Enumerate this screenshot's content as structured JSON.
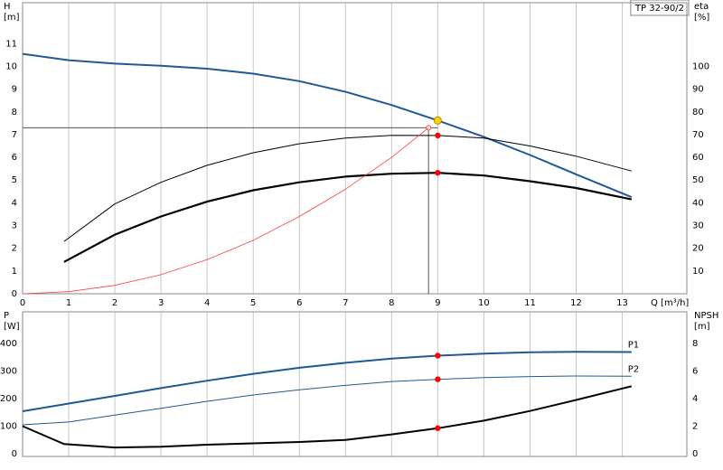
{
  "chart_data": [
    {
      "type": "line",
      "title": "TP 32-90/2",
      "ylabel": [
        "H",
        "[m]"
      ],
      "y2label": [
        "eta",
        "[%]"
      ],
      "xlabel": "Q [m³/h]",
      "xlim": [
        0,
        14.4
      ],
      "xticks": [
        0,
        1,
        2,
        3,
        4,
        5,
        6,
        7,
        8,
        9,
        10,
        11,
        12,
        13
      ],
      "ylim": [
        0,
        12.8
      ],
      "yticks": [
        0,
        1,
        2,
        3,
        4,
        5,
        6,
        7,
        8,
        9,
        10,
        11
      ],
      "y2lim": [
        0,
        128
      ],
      "y2ticks": [
        10,
        20,
        30,
        40,
        50,
        60,
        70,
        80,
        90,
        100
      ],
      "grid": "x",
      "guide": {
        "x": 8.8,
        "y": 7.3,
        "color": "#555555"
      },
      "series": [
        {
          "color": "#1f5a96",
          "linewidth": 2,
          "x": [
            0,
            1,
            2,
            3,
            4,
            5,
            6,
            7,
            8,
            9,
            10,
            11,
            12,
            13.2
          ],
          "values": [
            10.55,
            10.27,
            10.12,
            10.03,
            9.9,
            9.68,
            9.35,
            8.88,
            8.3,
            7.62,
            6.9,
            6.1,
            5.25,
            4.25
          ]
        },
        {
          "color": "#000000",
          "linewidth": 1,
          "axis": "y2",
          "x": [
            0.9,
            2,
            3,
            4,
            5,
            6,
            7,
            8,
            9,
            10,
            11,
            12,
            13.2
          ],
          "values": [
            23,
            39.5,
            49,
            56.5,
            62,
            66,
            68.5,
            69.7,
            69.6,
            68.5,
            65,
            60.5,
            54
          ]
        },
        {
          "color": "#000000",
          "linewidth": 2.2,
          "axis": "y2",
          "x": [
            0.9,
            2,
            3,
            4,
            5,
            6,
            7,
            8,
            9,
            10,
            11,
            12,
            13.2
          ],
          "values": [
            14,
            26,
            34,
            40.5,
            45.5,
            49,
            51.5,
            52.8,
            53.2,
            52,
            49.5,
            46.5,
            41.5
          ]
        },
        {
          "color": "#ff4040",
          "linewidth": 0.8,
          "x": [
            0,
            1,
            2,
            3,
            4,
            5,
            6,
            7,
            8,
            8.8
          ],
          "values": [
            0,
            0.09,
            0.37,
            0.84,
            1.5,
            2.35,
            3.4,
            4.6,
            6.0,
            7.3
          ]
        },
        {
          "color": "#ff0000",
          "marker": true,
          "axis": "y2",
          "x": [
            9,
            9
          ],
          "values": [
            69.6,
            53.2
          ]
        },
        {
          "color": "#ffd700",
          "marker": true,
          "x": [
            9
          ],
          "values": [
            7.62
          ]
        }
      ]
    },
    {
      "type": "line",
      "ylabel": [
        "P",
        "[W]"
      ],
      "y2label": [
        "NPSH",
        "[m]"
      ],
      "xlim": [
        0,
        14.4
      ],
      "xticks": [
        0,
        1,
        2,
        3,
        4,
        5,
        6,
        7,
        8,
        9,
        10,
        11,
        12,
        13
      ],
      "ylim": [
        -10,
        515
      ],
      "yticks": [
        0,
        100,
        200,
        300,
        400
      ],
      "y2lim": [
        -0.2,
        10.3
      ],
      "y2ticks": [
        0,
        2,
        4,
        6,
        8
      ],
      "grid": "x",
      "series": [
        {
          "name": "P1",
          "color": "#1f5a96",
          "linewidth": 2,
          "x": [
            0,
            1,
            2,
            3,
            4,
            5,
            6,
            7,
            8,
            9,
            10,
            11,
            12,
            13.2
          ],
          "values": [
            154,
            182,
            210,
            238,
            265,
            290,
            312,
            330,
            345,
            356,
            363,
            368,
            370,
            369
          ]
        },
        {
          "name": "P2",
          "color": "#1f5a96",
          "linewidth": 1,
          "x": [
            0,
            1,
            2,
            3,
            4,
            5,
            6,
            7,
            8,
            9,
            10,
            11,
            12,
            13.2
          ],
          "values": [
            105,
            115,
            140,
            165,
            190,
            213,
            232,
            248,
            262,
            270,
            276,
            280,
            282,
            281
          ]
        },
        {
          "color": "#000000",
          "linewidth": 2,
          "axis": "y2",
          "x": [
            0,
            0.9,
            2,
            3,
            4,
            5,
            6,
            7,
            8,
            9,
            10,
            11,
            12,
            13.2
          ],
          "values": [
            2,
            0.7,
            0.45,
            0.5,
            0.65,
            0.75,
            0.85,
            1.0,
            1.4,
            1.85,
            2.4,
            3.1,
            3.9,
            4.9
          ]
        },
        {
          "color": "#ff0000",
          "marker": true,
          "x": [
            9,
            9
          ],
          "values": [
            356,
            270
          ]
        },
        {
          "color": "#ff0000",
          "marker": true,
          "axis": "y2",
          "x": [
            9
          ],
          "values": [
            1.85
          ]
        }
      ]
    }
  ]
}
